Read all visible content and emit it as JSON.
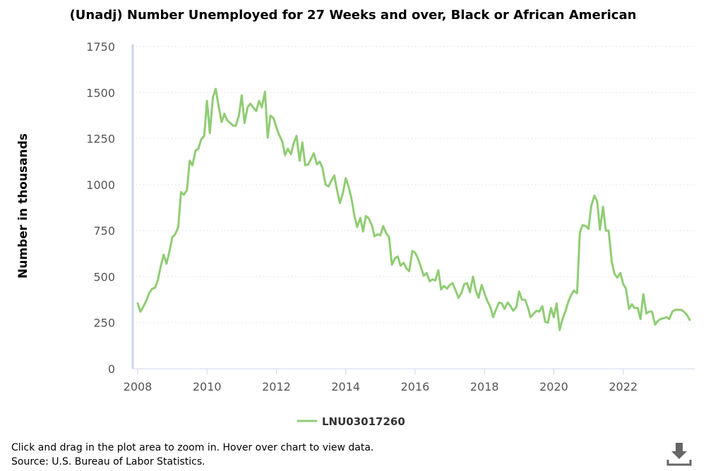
{
  "chart_data": {
    "type": "line",
    "title": "(Unadj) Number Unemployed for 27 Weeks and over, Black or African American",
    "ylabel": "Number in thousands",
    "xlabel": "",
    "xlim": [
      2008,
      2023.92
    ],
    "ylim": [
      0,
      1750
    ],
    "x_ticks": [
      "2008",
      "2010",
      "2012",
      "2014",
      "2016",
      "2018",
      "2020",
      "2022"
    ],
    "y_ticks": [
      "0",
      "250",
      "500",
      "750",
      "1000",
      "1250",
      "1500",
      "1750"
    ],
    "grid": "horizontal dotted",
    "legend": "bottom-center",
    "series": [
      {
        "name": "LNU03017260",
        "color": "#90cc74",
        "x": [
          2008.0,
          2008.08,
          2008.17,
          2008.25,
          2008.33,
          2008.42,
          2008.5,
          2008.58,
          2008.67,
          2008.75,
          2008.83,
          2008.92,
          2009.0,
          2009.08,
          2009.17,
          2009.25,
          2009.33,
          2009.42,
          2009.5,
          2009.58,
          2009.67,
          2009.75,
          2009.83,
          2009.92,
          2010.0,
          2010.08,
          2010.17,
          2010.25,
          2010.33,
          2010.42,
          2010.5,
          2010.58,
          2010.67,
          2010.75,
          2010.83,
          2010.92,
          2011.0,
          2011.08,
          2011.17,
          2011.25,
          2011.33,
          2011.42,
          2011.5,
          2011.58,
          2011.67,
          2011.75,
          2011.83,
          2011.92,
          2012.0,
          2012.08,
          2012.17,
          2012.25,
          2012.33,
          2012.42,
          2012.5,
          2012.58,
          2012.67,
          2012.75,
          2012.83,
          2012.92,
          2013.0,
          2013.08,
          2013.17,
          2013.25,
          2013.33,
          2013.42,
          2013.5,
          2013.58,
          2013.67,
          2013.75,
          2013.83,
          2013.92,
          2014.0,
          2014.08,
          2014.17,
          2014.25,
          2014.33,
          2014.42,
          2014.5,
          2014.58,
          2014.67,
          2014.75,
          2014.83,
          2014.92,
          2015.0,
          2015.08,
          2015.17,
          2015.25,
          2015.33,
          2015.42,
          2015.5,
          2015.58,
          2015.67,
          2015.75,
          2015.83,
          2015.92,
          2016.0,
          2016.08,
          2016.17,
          2016.25,
          2016.33,
          2016.42,
          2016.5,
          2016.58,
          2016.67,
          2016.75,
          2016.83,
          2016.92,
          2017.0,
          2017.08,
          2017.17,
          2017.25,
          2017.33,
          2017.42,
          2017.5,
          2017.58,
          2017.67,
          2017.75,
          2017.83,
          2017.92,
          2018.0,
          2018.08,
          2018.17,
          2018.25,
          2018.33,
          2018.42,
          2018.5,
          2018.58,
          2018.67,
          2018.75,
          2018.83,
          2018.92,
          2019.0,
          2019.08,
          2019.17,
          2019.25,
          2019.33,
          2019.42,
          2019.5,
          2019.58,
          2019.67,
          2019.75,
          2019.83,
          2019.92,
          2020.0,
          2020.08,
          2020.17,
          2020.25,
          2020.33,
          2020.42,
          2020.5,
          2020.58,
          2020.67,
          2020.75,
          2020.83,
          2020.92,
          2021.0,
          2021.08,
          2021.17,
          2021.25,
          2021.33,
          2021.42,
          2021.5,
          2021.58,
          2021.67,
          2021.75,
          2021.83,
          2021.92,
          2022.0,
          2022.08,
          2022.17,
          2022.25,
          2022.33,
          2022.42,
          2022.5,
          2022.58,
          2022.67,
          2022.75,
          2022.83,
          2022.92,
          2023.0,
          2023.08,
          2023.17,
          2023.25,
          2023.33,
          2023.42,
          2023.5,
          2023.58,
          2023.67,
          2023.75,
          2023.83,
          2023.92
        ],
        "values": [
          355,
          310,
          340,
          370,
          410,
          435,
          440,
          480,
          560,
          620,
          570,
          640,
          715,
          730,
          770,
          960,
          945,
          970,
          1130,
          1105,
          1185,
          1195,
          1245,
          1265,
          1455,
          1280,
          1475,
          1520,
          1430,
          1340,
          1385,
          1350,
          1335,
          1320,
          1320,
          1375,
          1485,
          1335,
          1420,
          1440,
          1420,
          1400,
          1455,
          1420,
          1505,
          1255,
          1375,
          1360,
          1310,
          1270,
          1235,
          1160,
          1195,
          1165,
          1225,
          1265,
          1130,
          1230,
          1105,
          1110,
          1140,
          1170,
          1110,
          1125,
          1090,
          1000,
          990,
          1020,
          1050,
          970,
          900,
          955,
          1035,
          990,
          920,
          830,
          770,
          820,
          745,
          830,
          815,
          780,
          720,
          730,
          725,
          775,
          735,
          715,
          565,
          600,
          610,
          560,
          575,
          545,
          530,
          640,
          630,
          600,
          550,
          505,
          520,
          475,
          485,
          480,
          535,
          430,
          450,
          435,
          455,
          465,
          425,
          385,
          410,
          460,
          465,
          415,
          500,
          425,
          385,
          455,
          410,
          370,
          335,
          280,
          320,
          360,
          355,
          325,
          360,
          340,
          315,
          335,
          420,
          375,
          375,
          335,
          280,
          300,
          315,
          310,
          340,
          255,
          250,
          330,
          280,
          355,
          210,
          270,
          310,
          365,
          400,
          425,
          410,
          740,
          780,
          775,
          760,
          885,
          940,
          910,
          755,
          880,
          750,
          750,
          580,
          515,
          495,
          520,
          460,
          435,
          325,
          350,
          330,
          330,
          270,
          405,
          300,
          310,
          310,
          240,
          260,
          270,
          275,
          280,
          270,
          310,
          320,
          320,
          320,
          310,
          295,
          265
        ]
      }
    ]
  },
  "footer": {
    "note": "Click and drag in the plot area to zoom in. Hover over chart to view data.",
    "source": "Source: U.S. Bureau of Labor Statistics."
  },
  "icons": {
    "download": "download-icon"
  }
}
